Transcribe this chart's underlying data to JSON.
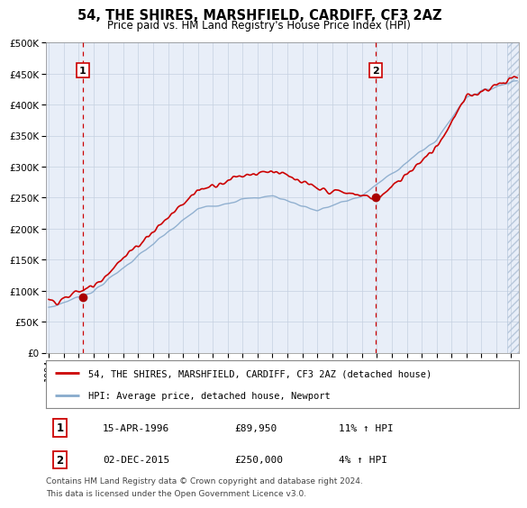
{
  "title": "54, THE SHIRES, MARSHFIELD, CARDIFF, CF3 2AZ",
  "subtitle": "Price paid vs. HM Land Registry's House Price Index (HPI)",
  "background_color": "#e8eef8",
  "grid_color": "#c5d0e0",
  "sale1_date": 1996.29,
  "sale1_price": 89950,
  "sale2_date": 2015.92,
  "sale2_price": 250000,
  "ylim": [
    0,
    500000
  ],
  "xlim": [
    1993.8,
    2025.5
  ],
  "yticks": [
    0,
    50000,
    100000,
    150000,
    200000,
    250000,
    300000,
    350000,
    400000,
    450000,
    500000
  ],
  "xticks": [
    1994,
    1995,
    1996,
    1997,
    1998,
    1999,
    2000,
    2001,
    2002,
    2003,
    2004,
    2005,
    2006,
    2007,
    2008,
    2009,
    2010,
    2011,
    2012,
    2013,
    2014,
    2015,
    2016,
    2017,
    2018,
    2019,
    2020,
    2021,
    2022,
    2023,
    2024,
    2025
  ],
  "legend_line1": "54, THE SHIRES, MARSHFIELD, CARDIFF, CF3 2AZ (detached house)",
  "legend_line2": "HPI: Average price, detached house, Newport",
  "table_row1": [
    "1",
    "15-APR-1996",
    "£89,950",
    "11% ↑ HPI"
  ],
  "table_row2": [
    "2",
    "02-DEC-2015",
    "£250,000",
    "4% ↑ HPI"
  ],
  "footnote1": "Contains HM Land Registry data © Crown copyright and database right 2024.",
  "footnote2": "This data is licensed under the Open Government Licence v3.0.",
  "red_line_color": "#cc0000",
  "blue_line_color": "#88aacc",
  "dot_color": "#aa0000",
  "dashed_color": "#cc0000",
  "hatch_end": 2025.5,
  "hatch_start": 2024.7
}
